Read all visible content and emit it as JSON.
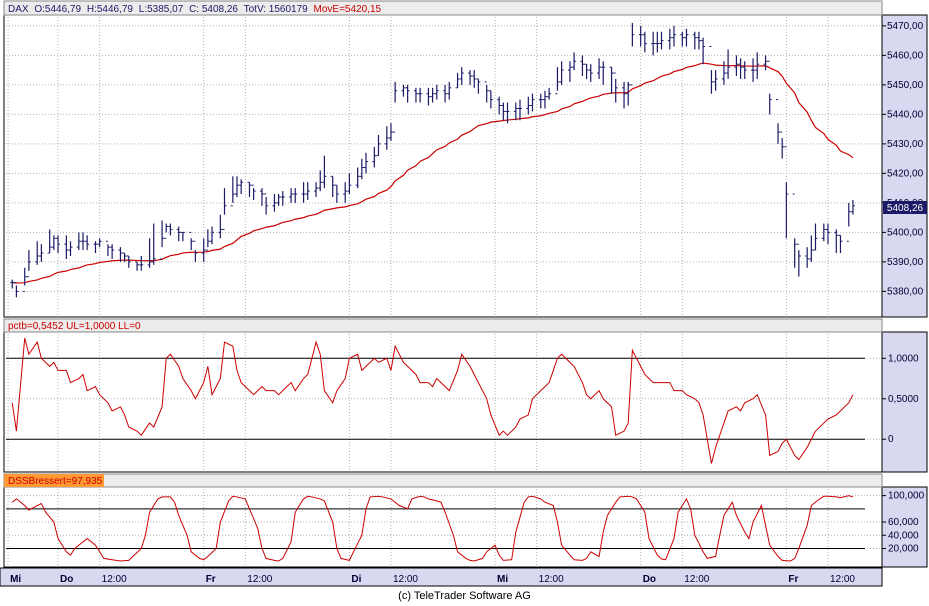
{
  "colors": {
    "price": "#1a1a66",
    "avg": "#cc0000",
    "osc": "#cc0000",
    "axis_bg": "#d8d8f0",
    "dss_label_bg": "#ff9933"
  },
  "footer": "(c) TeleTrader Software AG",
  "chart_data": [
    {
      "type": "ohlc",
      "header": {
        "symbol": "DAX",
        "open": "O:5446,79",
        "high": "H:5446,79",
        "low": "L:5385,07",
        "close": "C: 5408,26",
        "volume": "TotV: 1560179",
        "avg_label": "MovE=5420,15"
      },
      "last_price_label": "5408,26",
      "ylim": [
        5372,
        5473
      ],
      "y_ticks": [
        {
          "v": 5380,
          "label": "5380,00"
        },
        {
          "v": 5390,
          "label": "5390,00"
        },
        {
          "v": 5400,
          "label": "5400,00"
        },
        {
          "v": 5410,
          "label": "5410,00"
        },
        {
          "v": 5420,
          "label": "5420,00"
        },
        {
          "v": 5430,
          "label": "5430,00"
        },
        {
          "v": 5440,
          "label": "5440,00"
        },
        {
          "v": 5450,
          "label": "5450,00"
        },
        {
          "v": 5460,
          "label": "5460,00"
        },
        {
          "v": 5470,
          "label": "5470,00"
        }
      ],
      "close": [
        5383,
        5380,
        5385,
        5390,
        5392,
        5393,
        5395,
        5398,
        5396,
        5394,
        5395,
        5397,
        5397,
        5396,
        5396,
        5397,
        5395,
        5394,
        5393,
        5392,
        5390,
        5389,
        5389,
        5390,
        5391,
        5398,
        5402,
        5401,
        5400,
        5400,
        5397,
        5393,
        5394,
        5397,
        5400,
        5401,
        5409,
        5413,
        5416,
        5417,
        5416,
        5414,
        5413,
        5409,
        5410,
        5412,
        5412,
        5413,
        5413,
        5413,
        5414,
        5415,
        5417,
        5419,
        5416,
        5413,
        5414,
        5416,
        5419,
        5422,
        5424,
        5426,
        5430,
        5432,
        5434,
        5448,
        5449,
        5448,
        5447,
        5447,
        5446,
        5447,
        5448,
        5447,
        5449,
        5452,
        5454,
        5453,
        5452,
        5451,
        5448,
        5445,
        5443,
        5441,
        5441,
        5442,
        5442,
        5443,
        5445,
        5445,
        5446,
        5447,
        5451,
        5455,
        5456,
        5458,
        5457,
        5455,
        5454,
        5456,
        5456,
        5454,
        5449,
        5447,
        5450,
        5467,
        5467,
        5464,
        5464,
        5464,
        5465,
        5466,
        5467,
        5466,
        5467,
        5466,
        5465,
        5463,
        5451,
        5452,
        5454,
        5456,
        5457,
        5456,
        5455,
        5455,
        5457,
        5458,
        5445,
        5434,
        5429,
        5413,
        5396,
        5392,
        5391,
        5394,
        5398,
        5401,
        5400,
        5399,
        5397,
        5407,
        5409
      ],
      "high": [
        5384,
        5382,
        5388,
        5394,
        5397,
        5396,
        5401,
        5399,
        5399,
        5399,
        5397,
        5400,
        5400,
        5399,
        5397,
        5398,
        5396,
        5396,
        5395,
        5393,
        5392,
        5390,
        5392,
        5398,
        5403,
        5404,
        5403,
        5403,
        5402,
        5400,
        5398,
        5394,
        5398,
        5401,
        5402,
        5406,
        5415,
        5419,
        5419,
        5418,
        5417,
        5415,
        5415,
        5412,
        5413,
        5413,
        5414,
        5415,
        5415,
        5417,
        5417,
        5417,
        5421,
        5426,
        5419,
        5416,
        5417,
        5420,
        5422,
        5425,
        5427,
        5429,
        5433,
        5436,
        5437,
        5451,
        5450,
        5450,
        5449,
        5449,
        5449,
        5449,
        5450,
        5450,
        5451,
        5454,
        5456,
        5455,
        5455,
        5452,
        5450,
        5448,
        5446,
        5444,
        5444,
        5444,
        5445,
        5446,
        5447,
        5447,
        5448,
        5449,
        5456,
        5458,
        5458,
        5461,
        5460,
        5457,
        5457,
        5459,
        5458,
        5456,
        5452,
        5451,
        5451,
        5471,
        5470,
        5468,
        5468,
        5468,
        5468,
        5469,
        5470,
        5468,
        5469,
        5468,
        5468,
        5466,
        5455,
        5455,
        5458,
        5462,
        5460,
        5459,
        5458,
        5459,
        5461,
        5460,
        5447,
        5437,
        5432,
        5417,
        5398,
        5394,
        5395,
        5399,
        5403,
        5403,
        5403,
        5401,
        5399,
        5410,
        5411
      ],
      "low": [
        5381,
        5378,
        5382,
        5387,
        5389,
        5390,
        5393,
        5394,
        5393,
        5391,
        5392,
        5394,
        5394,
        5394,
        5393,
        5395,
        5392,
        5391,
        5390,
        5390,
        5388,
        5387,
        5387,
        5388,
        5389,
        5395,
        5400,
        5399,
        5397,
        5397,
        5394,
        5390,
        5390,
        5395,
        5396,
        5398,
        5406,
        5410,
        5412,
        5413,
        5412,
        5411,
        5409,
        5406,
        5407,
        5409,
        5409,
        5410,
        5410,
        5410,
        5411,
        5412,
        5414,
        5415,
        5412,
        5410,
        5410,
        5413,
        5415,
        5418,
        5420,
        5422,
        5426,
        5428,
        5431,
        5444,
        5446,
        5444,
        5444,
        5444,
        5443,
        5444,
        5445,
        5444,
        5445,
        5449,
        5450,
        5450,
        5449,
        5447,
        5444,
        5442,
        5440,
        5438,
        5437,
        5438,
        5438,
        5440,
        5441,
        5442,
        5442,
        5445,
        5448,
        5450,
        5451,
        5455,
        5453,
        5452,
        5451,
        5452,
        5450,
        5447,
        5444,
        5442,
        5443,
        5463,
        5463,
        5461,
        5460,
        5461,
        5462,
        5462,
        5463,
        5463,
        5463,
        5462,
        5462,
        5457,
        5447,
        5448,
        5450,
        5452,
        5453,
        5452,
        5452,
        5451,
        5452,
        5455,
        5440,
        5430,
        5425,
        5398,
        5388,
        5385,
        5388,
        5390,
        5394,
        5397,
        5396,
        5393,
        5393,
        5402,
        5406
      ]
    },
    {
      "type": "line",
      "label": "pctb=0,5452 UL=1,0000 LL=0",
      "ylim": [
        -0.38,
        1.3
      ],
      "y_ticks": [
        {
          "v": 0,
          "label": "0"
        },
        {
          "v": 0.5,
          "label": "0,5000"
        },
        {
          "v": 1,
          "label": "1,0000"
        }
      ],
      "hlines": [
        0,
        1
      ],
      "values": [
        0.45,
        0.1,
        1.25,
        1.05,
        1.2,
        1.0,
        0.9,
        0.95,
        0.85,
        0.85,
        0.7,
        0.75,
        0.8,
        0.6,
        0.65,
        0.55,
        0.45,
        0.35,
        0.4,
        0.3,
        0.15,
        0.1,
        0.05,
        0.2,
        0.15,
        0.4,
        1.0,
        1.05,
        0.9,
        0.75,
        0.6,
        0.5,
        0.7,
        0.9,
        0.55,
        0.75,
        1.2,
        1.15,
        0.85,
        0.7,
        0.6,
        0.55,
        0.65,
        0.6,
        0.6,
        0.55,
        0.6,
        0.7,
        0.6,
        0.75,
        0.8,
        1.2,
        1.05,
        0.6,
        0.45,
        0.6,
        0.75,
        1.0,
        1.05,
        0.85,
        0.9,
        1.0,
        0.95,
        1.0,
        0.85,
        1.15,
        0.95,
        0.9,
        0.8,
        0.7,
        0.7,
        0.65,
        0.75,
        0.65,
        0.6,
        0.85,
        1.05,
        0.9,
        0.8,
        0.7,
        0.5,
        0.3,
        0.05,
        0.1,
        0.05,
        0.15,
        0.25,
        0.3,
        0.5,
        0.6,
        0.65,
        0.7,
        1.0,
        1.05,
        0.95,
        0.9,
        0.7,
        0.55,
        0.5,
        0.6,
        0.5,
        0.4,
        0.05,
        0.1,
        0.2,
        1.1,
        0.9,
        0.8,
        0.7,
        0.7,
        0.7,
        0.7,
        0.6,
        0.6,
        0.55,
        0.5,
        0.45,
        0.3,
        -0.3,
        -0.1,
        0.2,
        0.35,
        0.4,
        0.35,
        0.45,
        0.5,
        0.55,
        0.3,
        -0.2,
        -0.15,
        -0.05,
        0.0,
        -0.2,
        -0.25,
        -0.1,
        0.0,
        0.1,
        0.2,
        0.25,
        0.3,
        0.35,
        0.45,
        0.55
      ]
    },
    {
      "type": "line",
      "label": "DSSBressert=97,935",
      "ylim": [
        -5,
        110
      ],
      "y_ticks": [
        {
          "v": 20,
          "label": "20,000"
        },
        {
          "v": 40,
          "label": "40,000"
        },
        {
          "v": 60,
          "label": "60,000"
        },
        {
          "v": 100,
          "label": "100,000"
        }
      ],
      "hlines": [
        20,
        80
      ],
      "values": [
        90,
        95,
        85,
        78,
        85,
        88,
        75,
        60,
        35,
        15,
        10,
        20,
        30,
        35,
        25,
        15,
        5,
        3,
        2,
        1,
        2,
        8,
        20,
        40,
        75,
        95,
        98,
        98,
        90,
        70,
        40,
        15,
        5,
        3,
        8,
        20,
        60,
        92,
        99,
        98,
        95,
        80,
        50,
        20,
        5,
        2,
        1,
        5,
        30,
        75,
        95,
        99,
        98,
        95,
        92,
        60,
        20,
        5,
        2,
        15,
        40,
        80,
        98,
        99,
        98,
        95,
        90,
        85,
        80,
        95,
        99,
        98,
        95,
        92,
        90,
        75,
        40,
        15,
        5,
        2,
        1,
        5,
        15,
        25,
        10,
        2,
        3,
        45,
        90,
        98,
        99,
        95,
        90,
        85,
        60,
        25,
        10,
        3,
        2,
        5,
        15,
        8,
        45,
        70,
        90,
        98,
        99,
        98,
        95,
        75,
        35,
        10,
        4,
        3,
        35,
        75,
        95,
        80,
        40,
        15,
        5,
        8,
        40,
        70,
        90,
        70,
        45,
        35,
        60,
        85,
        55,
        25,
        8,
        2,
        1,
        5,
        20,
        55,
        85,
        95,
        99,
        99,
        98,
        97,
        100,
        98
      ]
    }
  ],
  "x_axis": {
    "ticks": [
      {
        "i": 0,
        "label": "Mi",
        "bold": true
      },
      {
        "i": 12,
        "label": "Do",
        "bold": true
      },
      {
        "i": 22,
        "label": "12:00",
        "bold": false
      },
      {
        "i": 47,
        "label": "Fr",
        "bold": true
      },
      {
        "i": 57,
        "label": "12:00",
        "bold": false
      },
      {
        "i": 82,
        "label": "Di",
        "bold": true
      },
      {
        "i": 92,
        "label": "12:00",
        "bold": false
      },
      {
        "i": 117,
        "label": "Mi",
        "bold": true
      },
      {
        "i": 127,
        "label": "12:00",
        "bold": false
      },
      {
        "i": 152,
        "label": "Do",
        "bold": true
      },
      {
        "i": 162,
        "label": "12:00",
        "bold": false
      },
      {
        "i": 187,
        "label": "Fr",
        "bold": true
      },
      {
        "i": 197,
        "label": "12:00",
        "bold": false
      }
    ],
    "n_slots": 210
  }
}
